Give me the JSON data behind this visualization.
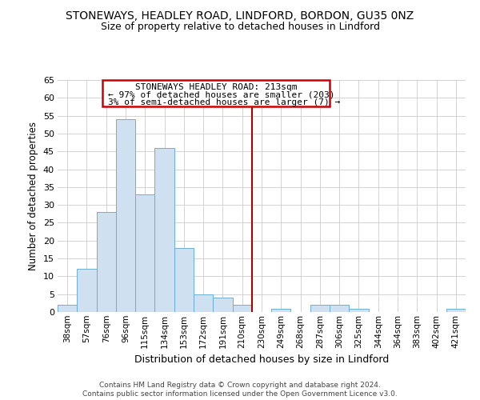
{
  "title": "STONEWAYS, HEADLEY ROAD, LINDFORD, BORDON, GU35 0NZ",
  "subtitle": "Size of property relative to detached houses in Lindford",
  "xlabel": "Distribution of detached houses by size in Lindford",
  "ylabel": "Number of detached properties",
  "bar_labels": [
    "38sqm",
    "57sqm",
    "76sqm",
    "96sqm",
    "115sqm",
    "134sqm",
    "153sqm",
    "172sqm",
    "191sqm",
    "210sqm",
    "230sqm",
    "249sqm",
    "268sqm",
    "287sqm",
    "306sqm",
    "325sqm",
    "344sqm",
    "364sqm",
    "383sqm",
    "402sqm",
    "421sqm"
  ],
  "bar_values": [
    2,
    12,
    28,
    54,
    33,
    46,
    18,
    5,
    4,
    2,
    0,
    1,
    0,
    2,
    2,
    1,
    0,
    0,
    0,
    0,
    1
  ],
  "bar_color": "#cfe0f0",
  "bar_edgecolor": "#6aafd8",
  "ylim": [
    0,
    65
  ],
  "yticks": [
    0,
    5,
    10,
    15,
    20,
    25,
    30,
    35,
    40,
    45,
    50,
    55,
    60,
    65
  ],
  "vline_x": 9.5,
  "vline_color": "#aa0000",
  "annotation_title": "STONEWAYS HEADLEY ROAD: 213sqm",
  "annotation_line1": "← 97% of detached houses are smaller (203)",
  "annotation_line2": "3% of semi-detached houses are larger (7) →",
  "annotation_box_color": "#cc0000",
  "footer1": "Contains HM Land Registry data © Crown copyright and database right 2024.",
  "footer2": "Contains public sector information licensed under the Open Government Licence v3.0.",
  "background_color": "#ffffff",
  "grid_color": "#cccccc"
}
